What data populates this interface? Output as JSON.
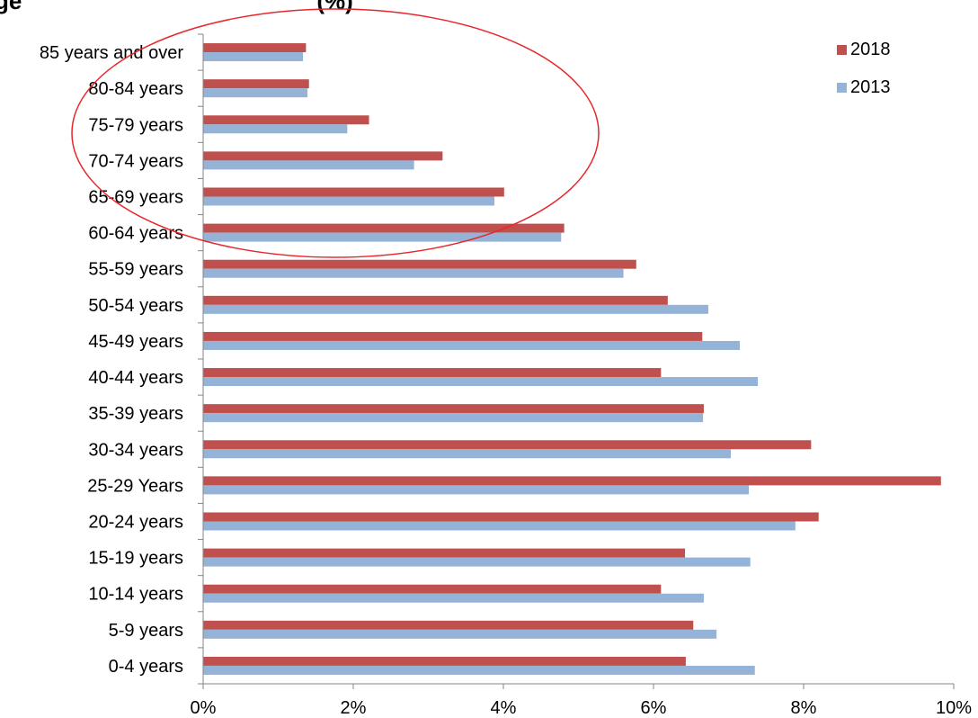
{
  "chart_data": {
    "type": "bar",
    "orientation": "horizontal",
    "title": "ge",
    "title_suffix": "(%)",
    "categories": [
      "0-4 years",
      "5-9 years",
      "10-14 years",
      "15-19 years",
      "20-24 years",
      "25-29 Years",
      "30-34 years",
      "35-39 years",
      "40-44 years",
      "45-49 years",
      "50-54 years",
      "55-59 years",
      "60-64 years",
      "65-69 years",
      "70-74 years",
      "75-79 years",
      "80-84 years",
      "85 years and over"
    ],
    "series": [
      {
        "name": "2018",
        "color": "#c0504d",
        "values": [
          6.43,
          6.53,
          6.1,
          6.42,
          8.2,
          9.83,
          8.1,
          6.67,
          6.1,
          6.65,
          6.19,
          5.77,
          4.81,
          4.01,
          3.19,
          2.21,
          1.41,
          1.37
        ]
      },
      {
        "name": "2013",
        "color": "#95b3d7",
        "values": [
          7.35,
          6.84,
          6.67,
          7.29,
          7.89,
          7.27,
          7.03,
          6.66,
          7.39,
          7.15,
          6.73,
          5.6,
          4.77,
          3.88,
          2.81,
          1.92,
          1.39,
          1.33
        ]
      }
    ],
    "xlim": [
      0,
      10
    ],
    "x_ticks": [
      "0%",
      "2%",
      "4%",
      "6%",
      "8%",
      "10%"
    ],
    "x_tick_values": [
      0,
      2,
      4,
      6,
      8,
      10
    ],
    "grid": false,
    "legend_position": "top-right",
    "annotation": {
      "shape": "ellipse",
      "color": "#e8272a",
      "highlights": "65-69 years to 85 years and over"
    }
  }
}
